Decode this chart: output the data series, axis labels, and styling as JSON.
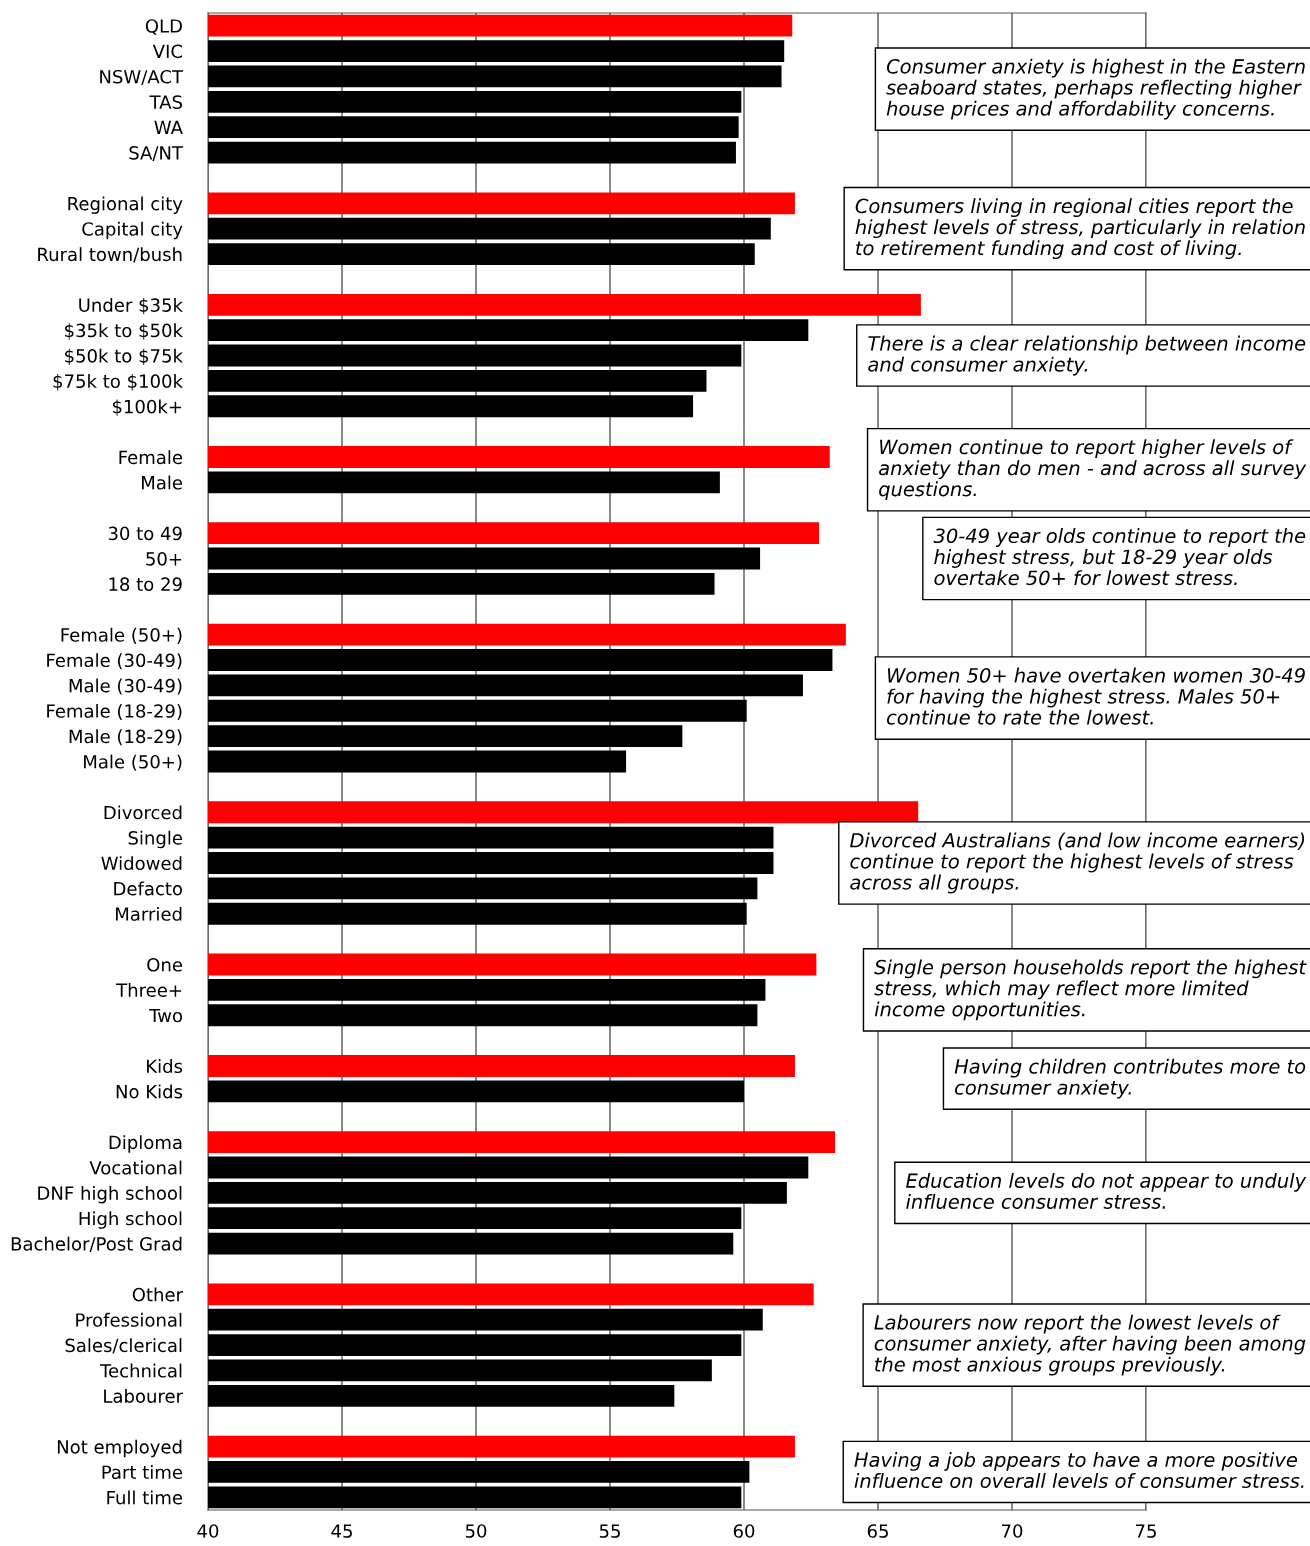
{
  "chart_data": {
    "type": "bar",
    "orientation": "horizontal",
    "grid": "x",
    "categories": [
      "QLD",
      "VIC",
      "NSW/ACT",
      "TAS",
      "WA",
      "SA/NT",
      null,
      "Regional city",
      "Capital city",
      "Rural town/bush",
      null,
      "Under $35k",
      "$35k to $50k",
      "$50k to $75k",
      "$75k to $100k",
      "$100k+",
      null,
      "Female",
      "Male",
      null,
      "30 to 49",
      "50+",
      "18 to 29",
      null,
      "Female (50+)",
      "Female (30-49)",
      "Male (30-49)",
      "Female (18-29)",
      "Male (18-29)",
      "Male (50+)",
      null,
      "Divorced",
      "Single",
      "Widowed",
      "Defacto",
      "Married",
      null,
      "One",
      "Three+",
      "Two",
      null,
      "Kids",
      "No Kids",
      null,
      "Diploma",
      "Vocational",
      "DNF high school",
      "High school",
      "Bachelor/Post Grad",
      null,
      "Other",
      "Professional",
      "Sales/clerical",
      "Technical",
      "Labourer",
      null,
      "Not employed",
      "Part time",
      "Full time"
    ],
    "values": [
      61.8,
      61.5,
      61.4,
      59.9,
      59.8,
      59.7,
      null,
      61.9,
      61.0,
      60.4,
      null,
      66.6,
      62.4,
      59.9,
      58.6,
      58.1,
      null,
      63.2,
      59.1,
      null,
      62.8,
      60.6,
      58.9,
      null,
      63.8,
      63.3,
      62.2,
      60.1,
      57.7,
      55.6,
      null,
      66.5,
      61.1,
      61.1,
      60.5,
      60.1,
      null,
      62.7,
      60.8,
      60.5,
      null,
      61.9,
      60.0,
      null,
      63.4,
      62.4,
      61.6,
      59.9,
      59.6,
      null,
      62.6,
      60.7,
      59.9,
      58.8,
      57.4,
      null,
      61.9,
      60.2,
      59.9
    ],
    "colors": [
      "#ff0000",
      "#000000",
      "#000000",
      "#000000",
      "#000000",
      "#000000",
      null,
      "#ff0000",
      "#000000",
      "#000000",
      null,
      "#ff0000",
      "#000000",
      "#000000",
      "#000000",
      "#000000",
      null,
      "#ff0000",
      "#000000",
      null,
      "#ff0000",
      "#000000",
      "#000000",
      null,
      "#ff0000",
      "#000000",
      "#000000",
      "#000000",
      "#000000",
      "#000000",
      null,
      "#ff0000",
      "#000000",
      "#000000",
      "#000000",
      "#000000",
      null,
      "#ff0000",
      "#000000",
      "#000000",
      null,
      "#ff0000",
      "#000000",
      null,
      "#ff0000",
      "#000000",
      "#000000",
      "#000000",
      "#000000",
      null,
      "#ff0000",
      "#000000",
      "#000000",
      "#000000",
      "#000000",
      null,
      "#ff0000",
      "#000000",
      "#000000"
    ],
    "xlim": [
      40,
      75
    ],
    "xticks": [
      40,
      45,
      50,
      55,
      60,
      65,
      70,
      75
    ],
    "annotations": [
      "Consumer anxiety is highest in the Eastern\nseaboard states, perhaps reflecting higher\nhouse prices and affordability concerns.",
      "Consumers living in regional cities report the\nhighest levels of stress, particularly in relation\nto retirement funding and cost of living.",
      "There is a clear relationship between income\nand consumer anxiety.",
      "Women continue to report higher levels of\nanxiety than do men - and across all survey\nquestions.",
      "30-49 year olds continue to report the\nhighest stress, but 18-29 year olds\novertake 50+ for lowest stress.",
      "Women 50+ have overtaken women 30-49\nfor having the highest stress. Males 50+\ncontinue to rate the lowest.",
      "Divorced Australians (and low income earners)\ncontinue to report the highest levels of stress\nacross all groups.",
      "Single person households report the highest\nstress, which may reflect more limited\nincome opportunities.",
      "Having children contributes more to\nconsumer anxiety.",
      "Education levels do not appear to unduly\ninfluence consumer stress.",
      "Labourers now report the lowest levels of\nconsumer anxiety, after having been among\nthe most anxious groups previously.",
      "Having a job appears to have a more positive\ninfluence on overall levels of consumer stress."
    ]
  }
}
